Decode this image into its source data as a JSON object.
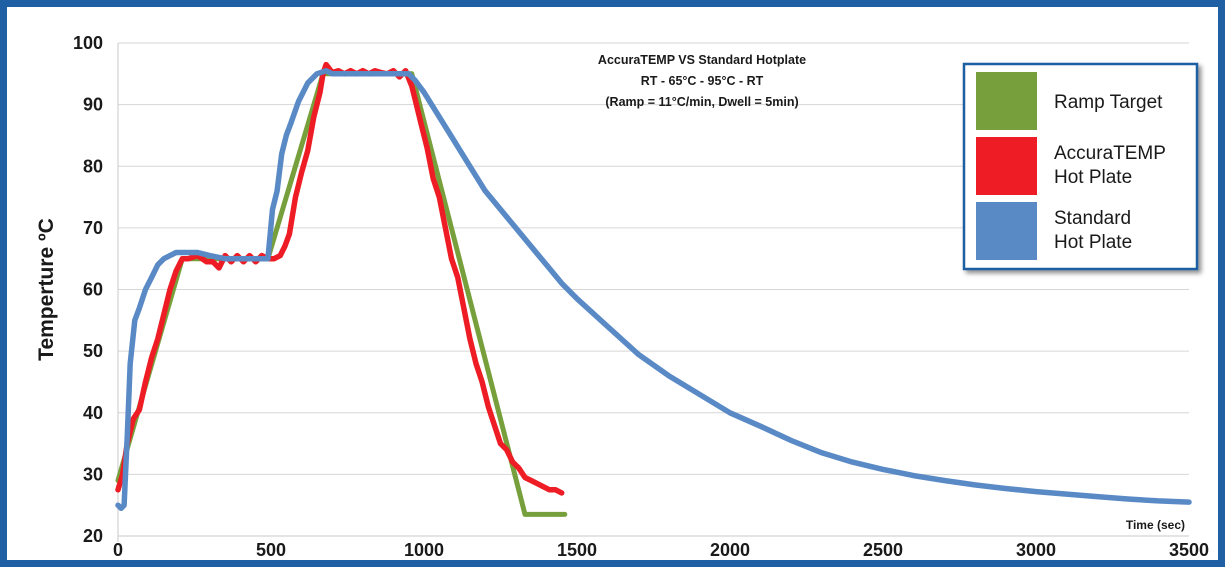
{
  "chart_data": {
    "type": "line",
    "title": "AccuraTEMP VS Standard Hotplate",
    "subtitle": [
      "RT - 65°C - 95°C - RT",
      "(Ramp = 11°C/min, Dwell = 5min)"
    ],
    "xlabel": "Time (sec)",
    "ylabel": "Temperture ºC",
    "xlim": [
      0,
      3500
    ],
    "ylim": [
      20,
      100
    ],
    "xticks": [
      0,
      500,
      1000,
      1500,
      2000,
      2500,
      3000,
      3500
    ],
    "yticks": [
      20,
      30,
      40,
      50,
      60,
      70,
      80,
      90,
      100
    ],
    "grid": "horizontal",
    "legend_position": "top-right",
    "series": [
      {
        "name": "Ramp Target",
        "color": "#77a03c",
        "x": [
          0,
          210,
          490,
          670,
          960,
          1330,
          1460
        ],
        "y": [
          29,
          65,
          65,
          95,
          95,
          23.5,
          23.5
        ]
      },
      {
        "name": "AccuraTEMP Hot Plate",
        "legend_lines": [
          "AccuraTEMP",
          "Hot Plate"
        ],
        "color": "#ee1c24",
        "x": [
          0,
          15,
          30,
          50,
          70,
          90,
          110,
          130,
          150,
          170,
          190,
          210,
          230,
          260,
          290,
          310,
          330,
          350,
          370,
          390,
          410,
          430,
          450,
          470,
          490,
          510,
          530,
          545,
          560,
          580,
          600,
          620,
          640,
          660,
          670,
          680,
          700,
          720,
          740,
          760,
          780,
          800,
          820,
          840,
          860,
          880,
          900,
          920,
          940,
          960,
          975,
          990,
          1010,
          1030,
          1050,
          1070,
          1090,
          1110,
          1130,
          1150,
          1170,
          1190,
          1210,
          1230,
          1250,
          1270,
          1290,
          1310,
          1330,
          1350,
          1370,
          1390,
          1410,
          1430,
          1450
        ],
        "y": [
          27.5,
          30,
          35,
          39,
          40.5,
          45,
          49,
          52,
          56,
          60,
          63,
          65,
          65,
          65.5,
          64.5,
          64.5,
          63.5,
          65.5,
          64.5,
          65.5,
          64.5,
          65.5,
          64.5,
          65.5,
          65,
          65,
          65.5,
          67,
          69,
          75,
          79,
          82.5,
          88,
          92,
          95,
          96.5,
          95.2,
          95.5,
          95,
          95.5,
          95,
          95.5,
          95,
          95.5,
          95.2,
          95,
          95.5,
          94.5,
          95.5,
          93,
          90,
          87,
          83,
          78,
          75,
          70,
          65,
          62,
          57,
          52,
          48,
          45,
          41,
          38,
          35,
          34,
          32,
          31,
          29.5,
          29,
          28.5,
          28,
          27.5,
          27.5,
          27
        ]
      },
      {
        "name": "Standard Hot Plate",
        "legend_lines": [
          "Standard",
          "Hot Plate"
        ],
        "color": "#5a8ac6",
        "x": [
          0,
          10,
          20,
          30,
          40,
          55,
          70,
          90,
          110,
          130,
          150,
          170,
          190,
          220,
          260,
          300,
          350,
          400,
          450,
          490,
          505,
          520,
          535,
          550,
          565,
          590,
          620,
          650,
          680,
          700,
          750,
          800,
          850,
          900,
          950,
          970,
          1000,
          1050,
          1100,
          1150,
          1200,
          1250,
          1300,
          1350,
          1400,
          1450,
          1500,
          1600,
          1700,
          1800,
          1900,
          2000,
          2100,
          2200,
          2300,
          2400,
          2500,
          2600,
          2700,
          2800,
          2900,
          3000,
          3100,
          3200,
          3300,
          3400,
          3500
        ],
        "y": [
          25,
          24.5,
          25,
          36,
          48,
          55,
          57,
          60,
          62,
          64,
          65,
          65.5,
          66,
          66,
          66,
          65.5,
          65,
          65,
          65,
          65,
          73,
          76,
          82,
          85,
          87,
          90.5,
          93.5,
          95,
          95.5,
          95,
          95,
          95,
          95,
          95,
          95,
          94,
          92,
          88,
          84,
          80,
          76,
          73,
          70,
          67,
          64,
          61,
          58.5,
          54,
          49.5,
          46,
          43,
          40,
          37.8,
          35.5,
          33.5,
          32,
          30.8,
          29.8,
          29,
          28.3,
          27.7,
          27.2,
          26.8,
          26.4,
          26,
          25.7,
          25.5
        ]
      }
    ]
  }
}
